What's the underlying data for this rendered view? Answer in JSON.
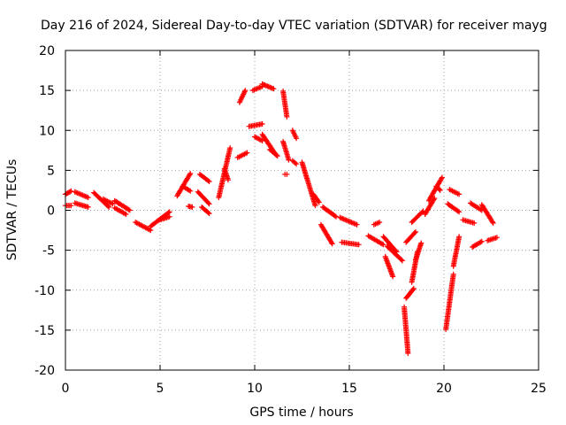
{
  "chart_data": {
    "type": "scatter",
    "title": "Day 216 of 2024, Sidereal Day-to-day VTEC variation (SDTVAR) for receiver mayg",
    "xlabel": "GPS time / hours",
    "ylabel": "SDTVAR / TECUs",
    "xlim": [
      0,
      25
    ],
    "ylim": [
      -20,
      20
    ],
    "xticks": [
      0,
      5,
      10,
      15,
      20,
      25
    ],
    "yticks": [
      -20,
      -15,
      -10,
      -5,
      0,
      5,
      10,
      15,
      20
    ],
    "grid": true,
    "marker": "plus",
    "color": "#ff0000",
    "segments": [
      {
        "x": [
          0.0,
          0.3
        ],
        "y": [
          0.6,
          0.6
        ]
      },
      {
        "x": [
          0.0,
          0.3
        ],
        "y": [
          2.0,
          2.4
        ]
      },
      {
        "x": [
          0.5,
          1.2
        ],
        "y": [
          2.3,
          1.6
        ]
      },
      {
        "x": [
          0.5,
          1.2
        ],
        "y": [
          0.9,
          0.4
        ]
      },
      {
        "x": [
          1.5,
          2.3
        ],
        "y": [
          2.2,
          0.4
        ]
      },
      {
        "x": [
          2.0,
          2.5
        ],
        "y": [
          1.4,
          0.8
        ]
      },
      {
        "x": [
          2.6,
          3.4
        ],
        "y": [
          1.2,
          0.0
        ]
      },
      {
        "x": [
          2.6,
          3.2
        ],
        "y": [
          0.3,
          -0.5
        ]
      },
      {
        "x": [
          3.7,
          4.5
        ],
        "y": [
          -1.5,
          -2.5
        ]
      },
      {
        "x": [
          4.5,
          5.5
        ],
        "y": [
          -2.0,
          -0.2
        ]
      },
      {
        "x": [
          5.0,
          5.5
        ],
        "y": [
          -1.2,
          -0.8
        ]
      },
      {
        "x": [
          5.9,
          6.6
        ],
        "y": [
          1.8,
          4.6
        ]
      },
      {
        "x": [
          6.2,
          6.6
        ],
        "y": [
          3.0,
          2.4
        ]
      },
      {
        "x": [
          6.5,
          6.7
        ],
        "y": [
          0.5,
          0.4
        ]
      },
      {
        "x": [
          7.1,
          7.6
        ],
        "y": [
          4.5,
          3.6
        ]
      },
      {
        "x": [
          7.0,
          7.6
        ],
        "y": [
          2.3,
          0.8
        ]
      },
      {
        "x": [
          7.2,
          7.6
        ],
        "y": [
          0.4,
          -0.4
        ]
      },
      {
        "x": [
          8.1,
          8.7
        ],
        "y": [
          1.6,
          7.8
        ]
      },
      {
        "x": [
          8.4,
          8.6
        ],
        "y": [
          5.2,
          3.8
        ]
      },
      {
        "x": [
          9.1,
          9.6
        ],
        "y": [
          6.6,
          7.2
        ]
      },
      {
        "x": [
          9.2,
          9.5
        ],
        "y": [
          13.5,
          15.0
        ]
      },
      {
        "x": [
          9.9,
          10.4
        ],
        "y": [
          15.0,
          15.5
        ]
      },
      {
        "x": [
          10.4,
          11.0
        ],
        "y": [
          15.8,
          15.2
        ]
      },
      {
        "x": [
          9.7,
          10.4
        ],
        "y": [
          10.5,
          10.8
        ]
      },
      {
        "x": [
          10.0,
          10.4
        ],
        "y": [
          9.2,
          8.7
        ]
      },
      {
        "x": [
          10.4,
          11.1
        ],
        "y": [
          9.5,
          7.0
        ]
      },
      {
        "x": [
          10.8,
          11.2
        ],
        "y": [
          7.6,
          6.8
        ]
      },
      {
        "x": [
          11.5,
          11.7
        ],
        "y": [
          14.9,
          11.7
        ]
      },
      {
        "x": [
          11.5,
          11.8
        ],
        "y": [
          8.6,
          6.3
        ]
      },
      {
        "x": [
          11.6,
          11.7
        ],
        "y": [
          4.5,
          4.5
        ]
      },
      {
        "x": [
          12.0,
          12.2
        ],
        "y": [
          10.0,
          9.0
        ]
      },
      {
        "x": [
          12.0,
          12.2
        ],
        "y": [
          6.2,
          5.8
        ]
      },
      {
        "x": [
          12.5,
          13.2
        ],
        "y": [
          6.0,
          0.6
        ]
      },
      {
        "x": [
          13.1,
          13.4
        ],
        "y": [
          2.0,
          1.0
        ]
      },
      {
        "x": [
          13.6,
          14.3
        ],
        "y": [
          0.4,
          -0.8
        ]
      },
      {
        "x": [
          13.5,
          14.1
        ],
        "y": [
          -1.8,
          -4.2
        ]
      },
      {
        "x": [
          14.5,
          15.4
        ],
        "y": [
          -0.9,
          -1.8
        ]
      },
      {
        "x": [
          14.6,
          15.5
        ],
        "y": [
          -4.0,
          -4.3
        ]
      },
      {
        "x": [
          16.0,
          16.8
        ],
        "y": [
          -3.2,
          -4.3
        ]
      },
      {
        "x": [
          16.3,
          16.6
        ],
        "y": [
          -1.8,
          -1.5
        ]
      },
      {
        "x": [
          16.8,
          17.5
        ],
        "y": [
          -3.3,
          -5.2
        ]
      },
      {
        "x": [
          16.9,
          17.3
        ],
        "y": [
          -5.8,
          -8.3
        ]
      },
      {
        "x": [
          17.0,
          17.8
        ],
        "y": [
          -4.5,
          -6.3
        ]
      },
      {
        "x": [
          18.0,
          18.5
        ],
        "y": [
          -4.0,
          -2.7
        ]
      },
      {
        "x": [
          18.3,
          18.9
        ],
        "y": [
          -1.5,
          -0.1
        ]
      },
      {
        "x": [
          18.0,
          18.4
        ],
        "y": [
          -11.0,
          -9.8
        ]
      },
      {
        "x": [
          18.3,
          18.6
        ],
        "y": [
          -9.0,
          -5.2
        ]
      },
      {
        "x": [
          18.5,
          18.8
        ],
        "y": [
          -6.2,
          -4.1
        ]
      },
      {
        "x": [
          17.9,
          18.1
        ],
        "y": [
          -12.1,
          -17.9
        ]
      },
      {
        "x": [
          19.0,
          19.5
        ],
        "y": [
          -0.5,
          1.5
        ]
      },
      {
        "x": [
          19.2,
          19.9
        ],
        "y": [
          1.2,
          4.1
        ]
      },
      {
        "x": [
          19.6,
          19.8
        ],
        "y": [
          3.0,
          2.5
        ]
      },
      {
        "x": [
          20.1,
          20.5
        ],
        "y": [
          -14.9,
          -8.0
        ]
      },
      {
        "x": [
          20.5,
          20.8
        ],
        "y": [
          -7.0,
          -3.3
        ]
      },
      {
        "x": [
          20.3,
          20.8
        ],
        "y": [
          2.6,
          2.0
        ]
      },
      {
        "x": [
          20.2,
          20.8
        ],
        "y": [
          0.8,
          -0.2
        ]
      },
      {
        "x": [
          21.4,
          22.0
        ],
        "y": [
          0.9,
          0.0
        ]
      },
      {
        "x": [
          21.0,
          21.6
        ],
        "y": [
          -1.2,
          -1.6
        ]
      },
      {
        "x": [
          21.5,
          22.0
        ],
        "y": [
          -4.6,
          -3.9
        ]
      },
      {
        "x": [
          22.0,
          22.6
        ],
        "y": [
          0.7,
          -1.6
        ]
      },
      {
        "x": [
          22.3,
          22.8
        ],
        "y": [
          -3.8,
          -3.4
        ]
      }
    ]
  }
}
